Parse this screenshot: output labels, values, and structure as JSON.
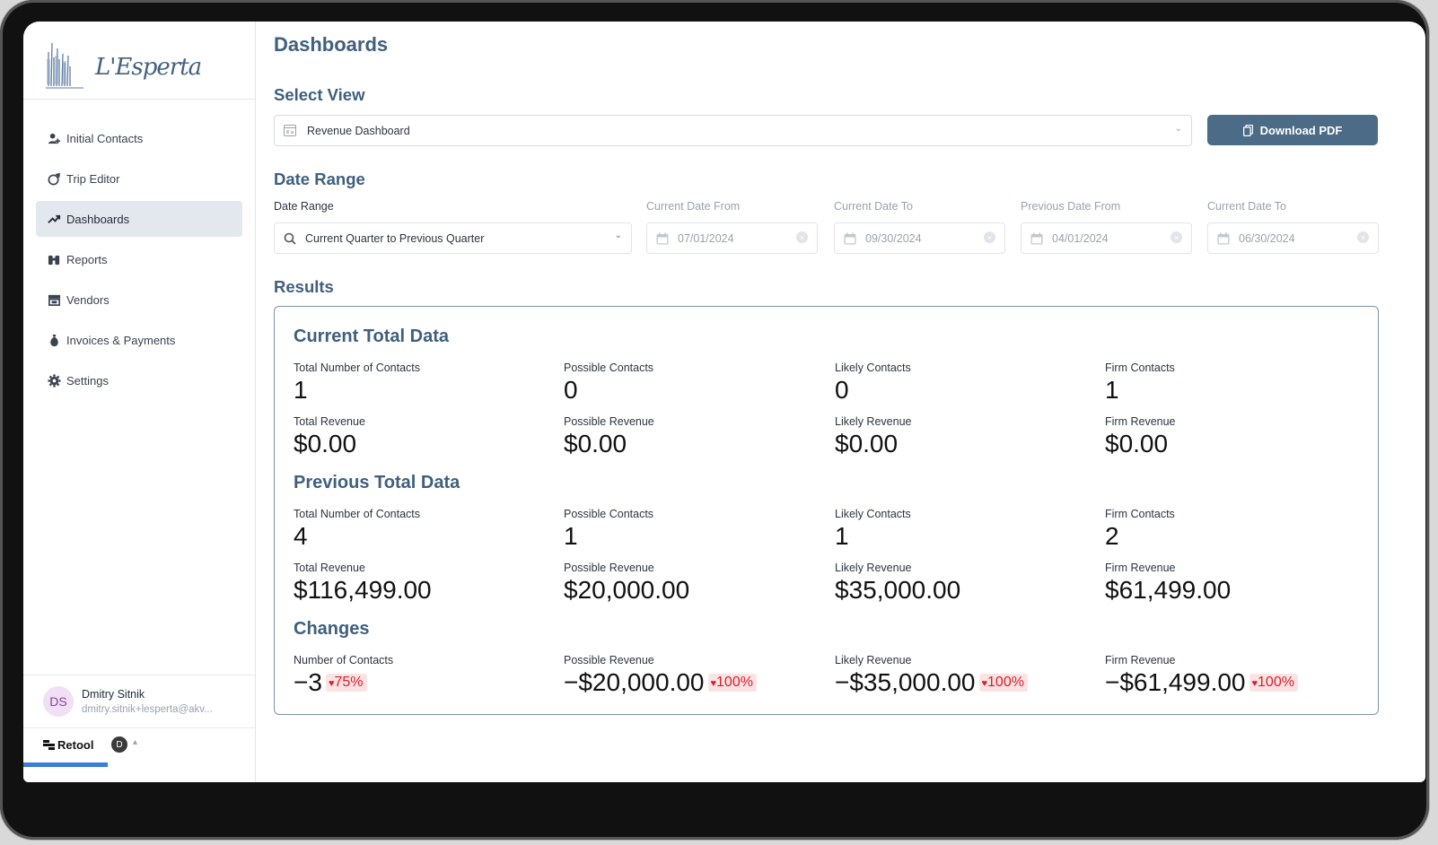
{
  "brand": {
    "logo_text": "L'Esperta"
  },
  "sidebar": {
    "items": [
      {
        "label": "Initial Contacts",
        "icon": "user-plus-icon",
        "active": false
      },
      {
        "label": "Trip Editor",
        "icon": "globe-plane-icon",
        "active": false
      },
      {
        "label": "Dashboards",
        "icon": "trend-up-icon",
        "active": true
      },
      {
        "label": "Reports",
        "icon": "binoculars-icon",
        "active": false
      },
      {
        "label": "Vendors",
        "icon": "storefront-icon",
        "active": false
      },
      {
        "label": "Invoices & Payments",
        "icon": "money-bag-icon",
        "active": false
      },
      {
        "label": "Settings",
        "icon": "gear-icon",
        "active": false
      }
    ],
    "user": {
      "initials": "DS",
      "name": "Dmitry Sitnik",
      "email": "dmitry.sitnik+lesperta@akv..."
    },
    "footer": {
      "product": "Retool",
      "badge": "D"
    }
  },
  "page": {
    "title": "Dashboards"
  },
  "select_view": {
    "heading": "Select View",
    "value": "Revenue Dashboard",
    "download_label": "Download PDF"
  },
  "date_range": {
    "heading": "Date Range",
    "range_label": "Date Range",
    "range_value": "Current Quarter to Previous Quarter",
    "current_from_label": "Current Date From",
    "current_from_value": "07/01/2024",
    "current_to_label": "Current Date To",
    "current_to_value": "09/30/2024",
    "previous_from_label": "Previous Date From",
    "previous_from_value": "04/01/2024",
    "previous_to_label": "Current Date To",
    "previous_to_value": "06/30/2024"
  },
  "results": {
    "heading": "Results",
    "current": {
      "title": "Current Total Data",
      "total_contacts_label": "Total Number of Contacts",
      "total_contacts": "1",
      "possible_contacts_label": "Possible Contacts",
      "possible_contacts": "0",
      "likely_contacts_label": "Likely Contacts",
      "likely_contacts": "0",
      "firm_contacts_label": "Firm Contacts",
      "firm_contacts": "1",
      "total_revenue_label": "Total Revenue",
      "total_revenue": "$0.00",
      "possible_revenue_label": "Possible Revenue",
      "possible_revenue": "$0.00",
      "likely_revenue_label": "Likely Revenue",
      "likely_revenue": "$0.00",
      "firm_revenue_label": "Firm Revenue",
      "firm_revenue": "$0.00"
    },
    "previous": {
      "title": "Previous Total Data",
      "total_contacts_label": "Total Number of Contacts",
      "total_contacts": "4",
      "possible_contacts_label": "Possible Contacts",
      "possible_contacts": "1",
      "likely_contacts_label": "Likely Contacts",
      "likely_contacts": "1",
      "firm_contacts_label": "Firm Contacts",
      "firm_contacts": "2",
      "total_revenue_label": "Total Revenue",
      "total_revenue": "$116,499.00",
      "possible_revenue_label": "Possible Revenue",
      "possible_revenue": "$20,000.00",
      "likely_revenue_label": "Likely Revenue",
      "likely_revenue": "$35,000.00",
      "firm_revenue_label": "Firm Revenue",
      "firm_revenue": "$61,499.00"
    },
    "changes": {
      "title": "Changes",
      "contacts_label": "Number of Contacts",
      "contacts": "−3",
      "contacts_pct": "75%",
      "possible_revenue_label": "Possible Revenue",
      "possible_revenue": "−$20,000.00",
      "possible_revenue_pct": "100%",
      "likely_revenue_label": "Likely Revenue",
      "likely_revenue": "−$35,000.00",
      "likely_revenue_pct": "100%",
      "firm_revenue_label": "Firm Revenue",
      "firm_revenue": "−$61,499.00",
      "firm_revenue_pct": "100%",
      "trend_direction": "down",
      "badge_color": "#d81f2a"
    }
  },
  "colors": {
    "heading": "#3f5f7d",
    "button": "#4b6b87",
    "active_nav": "#e3e8ef",
    "results_border": "#7b93ab"
  }
}
